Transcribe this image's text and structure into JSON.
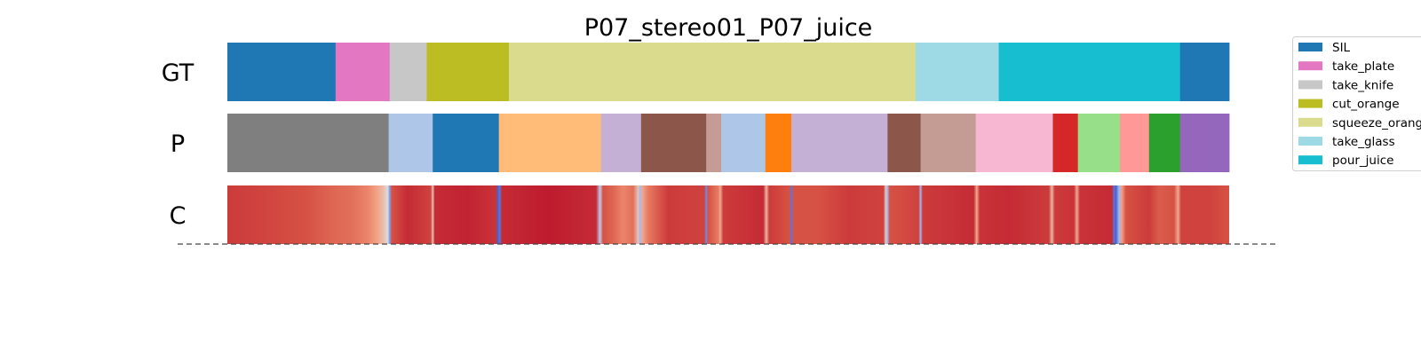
{
  "chart_data": {
    "type": "segmentation-timeline",
    "title": "P07_stereo01_P07_juice",
    "x_range": [
      0,
      1000
    ],
    "rows": [
      {
        "label": "GT",
        "segments": [
          {
            "start": 0,
            "end": 108,
            "action": "SIL"
          },
          {
            "start": 108,
            "end": 162,
            "action": "take_plate"
          },
          {
            "start": 162,
            "end": 199,
            "action": "take_knife"
          },
          {
            "start": 199,
            "end": 281,
            "action": "cut_orange"
          },
          {
            "start": 281,
            "end": 687,
            "action": "squeeze_orange"
          },
          {
            "start": 687,
            "end": 770,
            "action": "take_glass"
          },
          {
            "start": 770,
            "end": 951,
            "action": "pour_juice"
          },
          {
            "start": 951,
            "end": 1000,
            "action": "SIL"
          }
        ]
      },
      {
        "label": "P",
        "segments": [
          {
            "start": 0,
            "end": 161,
            "color": "#7f7f7f"
          },
          {
            "start": 161,
            "end": 205,
            "color": "#aec7e8"
          },
          {
            "start": 205,
            "end": 271,
            "color": "#1f77b4"
          },
          {
            "start": 271,
            "end": 373,
            "color": "#ffbb78"
          },
          {
            "start": 373,
            "end": 413,
            "color": "#c5b0d5"
          },
          {
            "start": 413,
            "end": 478,
            "color": "#8c564b"
          },
          {
            "start": 478,
            "end": 493,
            "color": "#c49c94"
          },
          {
            "start": 493,
            "end": 537,
            "color": "#aec7e8"
          },
          {
            "start": 537,
            "end": 563,
            "color": "#ff7f0e"
          },
          {
            "start": 563,
            "end": 659,
            "color": "#c5b0d5"
          },
          {
            "start": 659,
            "end": 692,
            "color": "#8c564b"
          },
          {
            "start": 692,
            "end": 747,
            "color": "#c49c94"
          },
          {
            "start": 747,
            "end": 824,
            "color": "#f7b6d2"
          },
          {
            "start": 824,
            "end": 849,
            "color": "#d62728"
          },
          {
            "start": 849,
            "end": 891,
            "color": "#98df8a"
          },
          {
            "start": 891,
            "end": 920,
            "color": "#ff9896"
          },
          {
            "start": 920,
            "end": 951,
            "color": "#2ca02c"
          },
          {
            "start": 951,
            "end": 1000,
            "color": "#9467bd"
          }
        ]
      },
      {
        "label": "C",
        "colormap": "coolwarm",
        "values": [
          {
            "x": 0,
            "v": 0.93
          },
          {
            "x": 30,
            "v": 0.92
          },
          {
            "x": 55,
            "v": 0.91
          },
          {
            "x": 80,
            "v": 0.9
          },
          {
            "x": 105,
            "v": 0.86
          },
          {
            "x": 125,
            "v": 0.84
          },
          {
            "x": 140,
            "v": 0.8
          },
          {
            "x": 150,
            "v": 0.72
          },
          {
            "x": 156,
            "v": 0.62
          },
          {
            "x": 160,
            "v": 0.5
          },
          {
            "x": 162,
            "v": 0.2
          },
          {
            "x": 164,
            "v": 0.9
          },
          {
            "x": 180,
            "v": 0.95
          },
          {
            "x": 203,
            "v": 0.92
          },
          {
            "x": 205,
            "v": 0.6
          },
          {
            "x": 207,
            "v": 0.95
          },
          {
            "x": 240,
            "v": 0.96
          },
          {
            "x": 268,
            "v": 0.94
          },
          {
            "x": 270,
            "v": 0.05
          },
          {
            "x": 272,
            "v": 0.1
          },
          {
            "x": 274,
            "v": 0.95
          },
          {
            "x": 320,
            "v": 0.97
          },
          {
            "x": 368,
            "v": 0.95
          },
          {
            "x": 372,
            "v": 0.4
          },
          {
            "x": 375,
            "v": 0.9
          },
          {
            "x": 385,
            "v": 0.86
          },
          {
            "x": 395,
            "v": 0.8
          },
          {
            "x": 405,
            "v": 0.84
          },
          {
            "x": 410,
            "v": 0.6
          },
          {
            "x": 412,
            "v": 0.3
          },
          {
            "x": 414,
            "v": 0.7
          },
          {
            "x": 420,
            "v": 0.82
          },
          {
            "x": 440,
            "v": 0.93
          },
          {
            "x": 476,
            "v": 0.92
          },
          {
            "x": 478,
            "v": 0.15
          },
          {
            "x": 480,
            "v": 0.9
          },
          {
            "x": 490,
            "v": 0.82
          },
          {
            "x": 492,
            "v": 0.7
          },
          {
            "x": 495,
            "v": 0.93
          },
          {
            "x": 535,
            "v": 0.95
          },
          {
            "x": 538,
            "v": 0.65
          },
          {
            "x": 541,
            "v": 0.93
          },
          {
            "x": 561,
            "v": 0.9
          },
          {
            "x": 563,
            "v": 0.1
          },
          {
            "x": 565,
            "v": 0.9
          },
          {
            "x": 590,
            "v": 0.9
          },
          {
            "x": 620,
            "v": 0.93
          },
          {
            "x": 655,
            "v": 0.92
          },
          {
            "x": 657,
            "v": 0.6
          },
          {
            "x": 659,
            "v": 0.3
          },
          {
            "x": 661,
            "v": 0.9
          },
          {
            "x": 690,
            "v": 0.92
          },
          {
            "x": 692,
            "v": 0.3
          },
          {
            "x": 694,
            "v": 0.93
          },
          {
            "x": 745,
            "v": 0.95
          },
          {
            "x": 748,
            "v": 0.7
          },
          {
            "x": 751,
            "v": 0.94
          },
          {
            "x": 780,
            "v": 0.95
          },
          {
            "x": 820,
            "v": 0.93
          },
          {
            "x": 823,
            "v": 0.65
          },
          {
            "x": 826,
            "v": 0.93
          },
          {
            "x": 845,
            "v": 0.94
          },
          {
            "x": 848,
            "v": 0.7
          },
          {
            "x": 851,
            "v": 0.94
          },
          {
            "x": 883,
            "v": 0.95
          },
          {
            "x": 885,
            "v": 0.1
          },
          {
            "x": 887,
            "v": 0.05
          },
          {
            "x": 890,
            "v": 0.3
          },
          {
            "x": 893,
            "v": 0.75
          },
          {
            "x": 897,
            "v": 0.9
          },
          {
            "x": 920,
            "v": 0.93
          },
          {
            "x": 930,
            "v": 0.88
          },
          {
            "x": 945,
            "v": 0.9
          },
          {
            "x": 949,
            "v": 0.7
          },
          {
            "x": 952,
            "v": 0.92
          },
          {
            "x": 980,
            "v": 0.92
          },
          {
            "x": 1000,
            "v": 0.9
          }
        ]
      }
    ],
    "legend": {
      "placement": "upper-right",
      "entries": [
        {
          "label": "SIL",
          "color": "#1f77b4"
        },
        {
          "label": "take_plate",
          "color": "#e377c2"
        },
        {
          "label": "take_knife",
          "color": "#c7c7c7"
        },
        {
          "label": "cut_orange",
          "color": "#bcbd22"
        },
        {
          "label": "squeeze_orange",
          "color": "#dbdb8d"
        },
        {
          "label": "take_glass",
          "color": "#9edae5"
        },
        {
          "label": "pour_juice",
          "color": "#17becf"
        }
      ]
    }
  }
}
